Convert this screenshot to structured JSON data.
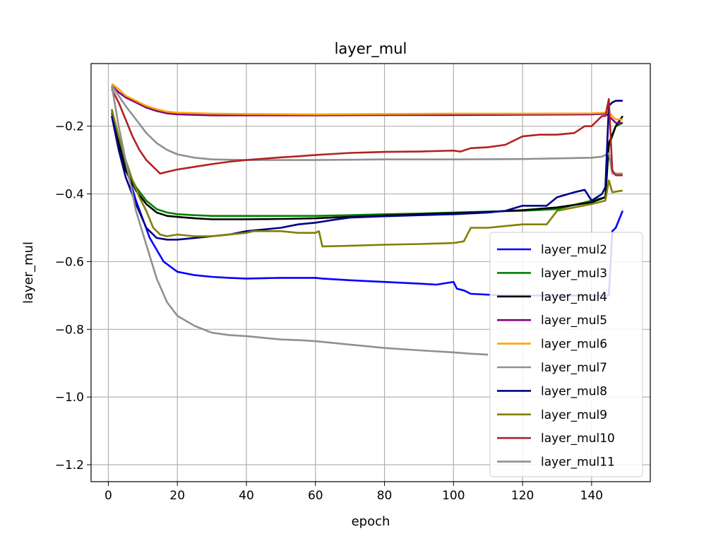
{
  "chart_data": {
    "type": "line",
    "title": "layer_mul",
    "xlabel": "epoch",
    "ylabel": "layer_mul",
    "xlim": [
      -5,
      157
    ],
    "ylim": [
      -1.25,
      -0.015
    ],
    "xticks": [
      0,
      20,
      40,
      60,
      80,
      100,
      120,
      140
    ],
    "yticks": [
      -1.2,
      -1.0,
      -0.8,
      -0.6,
      -0.4,
      -0.2
    ],
    "grid": true,
    "legend_position": "lower-right",
    "series": [
      {
        "name": "layer_mul2",
        "color": "#0000ff",
        "x": [
          1,
          3,
          5,
          8,
          12,
          16,
          20,
          25,
          30,
          35,
          40,
          45,
          50,
          60,
          62,
          70,
          80,
          90,
          95,
          100,
          101,
          103,
          105,
          115,
          118,
          120,
          125,
          130,
          135,
          140,
          145,
          146,
          147,
          149
        ],
        "y": [
          -0.17,
          -0.24,
          -0.32,
          -0.42,
          -0.53,
          -0.6,
          -0.63,
          -0.64,
          -0.645,
          -0.648,
          -0.65,
          -0.649,
          -0.648,
          -0.648,
          -0.65,
          -0.655,
          -0.66,
          -0.665,
          -0.668,
          -0.66,
          -0.68,
          -0.685,
          -0.695,
          -0.7,
          -0.7,
          -0.7,
          -0.7,
          -0.7,
          -0.7,
          -0.7,
          -0.7,
          -0.51,
          -0.5,
          -0.45
        ]
      },
      {
        "name": "layer_mul3",
        "color": "#008000",
        "x": [
          1,
          3,
          5,
          8,
          11,
          14,
          17,
          20,
          25,
          30,
          40,
          50,
          60,
          70,
          80,
          90,
          100,
          110,
          120,
          130,
          140,
          144,
          145,
          147,
          149
        ],
        "y": [
          -0.16,
          -0.25,
          -0.32,
          -0.38,
          -0.42,
          -0.445,
          -0.455,
          -0.46,
          -0.463,
          -0.465,
          -0.465,
          -0.465,
          -0.465,
          -0.463,
          -0.46,
          -0.458,
          -0.455,
          -0.452,
          -0.45,
          -0.445,
          -0.42,
          -0.41,
          -0.26,
          -0.2,
          -0.19
        ]
      },
      {
        "name": "layer_mul4",
        "color": "#000000",
        "x": [
          1,
          3,
          5,
          8,
          11,
          14,
          17,
          20,
          25,
          30,
          40,
          50,
          60,
          70,
          80,
          90,
          100,
          110,
          120,
          130,
          140,
          144,
          145,
          147,
          149
        ],
        "y": [
          -0.15,
          -0.25,
          -0.33,
          -0.39,
          -0.43,
          -0.455,
          -0.465,
          -0.468,
          -0.472,
          -0.475,
          -0.475,
          -0.474,
          -0.472,
          -0.468,
          -0.464,
          -0.46,
          -0.457,
          -0.453,
          -0.448,
          -0.44,
          -0.425,
          -0.41,
          -0.25,
          -0.2,
          -0.17
        ]
      },
      {
        "name": "layer_mul5",
        "color": "#800080",
        "x": [
          1,
          3,
          5,
          8,
          11,
          14,
          17,
          20,
          30,
          40,
          60,
          80,
          100,
          120,
          140,
          144,
          145,
          147,
          149
        ],
        "y": [
          -0.08,
          -0.1,
          -0.115,
          -0.13,
          -0.145,
          -0.155,
          -0.162,
          -0.165,
          -0.168,
          -0.168,
          -0.168,
          -0.167,
          -0.167,
          -0.166,
          -0.165,
          -0.163,
          -0.17,
          -0.19,
          -0.19
        ]
      },
      {
        "name": "layer_mul6",
        "color": "#ffa500",
        "x": [
          1,
          3,
          5,
          8,
          11,
          14,
          17,
          20,
          30,
          40,
          60,
          80,
          100,
          120,
          140,
          144,
          145,
          147,
          149
        ],
        "y": [
          -0.075,
          -0.09,
          -0.11,
          -0.125,
          -0.14,
          -0.15,
          -0.157,
          -0.16,
          -0.163,
          -0.164,
          -0.165,
          -0.164,
          -0.163,
          -0.163,
          -0.162,
          -0.16,
          -0.16,
          -0.18,
          -0.18
        ]
      },
      {
        "name": "layer_mul7",
        "color": "#909090",
        "x": [
          1,
          3,
          5,
          8,
          11,
          14,
          17,
          20,
          25,
          30,
          40,
          60,
          80,
          100,
          120,
          140,
          143,
          145,
          146,
          149
        ],
        "y": [
          -0.08,
          -0.11,
          -0.14,
          -0.18,
          -0.22,
          -0.25,
          -0.27,
          -0.283,
          -0.293,
          -0.298,
          -0.3,
          -0.3,
          -0.298,
          -0.298,
          -0.297,
          -0.293,
          -0.29,
          -0.28,
          -0.34,
          -0.34
        ]
      },
      {
        "name": "layer_mul8",
        "color": "#00008b",
        "x": [
          1,
          3,
          5,
          8,
          11,
          14,
          17,
          20,
          25,
          30,
          35,
          40,
          45,
          50,
          55,
          60,
          65,
          70,
          80,
          90,
          100,
          110,
          115,
          120,
          125,
          127,
          130,
          135,
          138,
          140,
          143,
          144,
          145,
          146,
          147,
          149
        ],
        "y": [
          -0.17,
          -0.27,
          -0.35,
          -0.43,
          -0.5,
          -0.53,
          -0.535,
          -0.535,
          -0.53,
          -0.525,
          -0.52,
          -0.51,
          -0.505,
          -0.5,
          -0.49,
          -0.485,
          -0.477,
          -0.47,
          -0.466,
          -0.463,
          -0.46,
          -0.455,
          -0.45,
          -0.435,
          -0.435,
          -0.435,
          -0.41,
          -0.395,
          -0.388,
          -0.42,
          -0.4,
          -0.38,
          -0.14,
          -0.13,
          -0.125,
          -0.125
        ]
      },
      {
        "name": "layer_mul9",
        "color": "#808000",
        "x": [
          1,
          3,
          5,
          7,
          9,
          11,
          13,
          15,
          17,
          20,
          25,
          30,
          35,
          40,
          42,
          45,
          50,
          55,
          60,
          61,
          62,
          70,
          80,
          90,
          100,
          103,
          105,
          110,
          115,
          120,
          125,
          127,
          130,
          140,
          144,
          145,
          146,
          149
        ],
        "y": [
          -0.15,
          -0.23,
          -0.3,
          -0.36,
          -0.41,
          -0.45,
          -0.5,
          -0.52,
          -0.525,
          -0.52,
          -0.525,
          -0.525,
          -0.52,
          -0.515,
          -0.51,
          -0.51,
          -0.51,
          -0.515,
          -0.515,
          -0.51,
          -0.555,
          -0.553,
          -0.55,
          -0.548,
          -0.545,
          -0.54,
          -0.5,
          -0.5,
          -0.495,
          -0.49,
          -0.49,
          -0.49,
          -0.45,
          -0.43,
          -0.42,
          -0.36,
          -0.395,
          -0.39
        ]
      },
      {
        "name": "layer_mul10",
        "color": "#b22222",
        "x": [
          1,
          3,
          5,
          7,
          9,
          11,
          13,
          15,
          17,
          20,
          25,
          30,
          35,
          40,
          45,
          50,
          55,
          60,
          65,
          70,
          80,
          90,
          100,
          102,
          105,
          110,
          115,
          120,
          125,
          130,
          135,
          138,
          140,
          142,
          143,
          144,
          145,
          146,
          147,
          149
        ],
        "y": [
          -0.09,
          -0.13,
          -0.18,
          -0.23,
          -0.27,
          -0.3,
          -0.32,
          -0.34,
          -0.335,
          -0.328,
          -0.32,
          -0.312,
          -0.305,
          -0.3,
          -0.296,
          -0.292,
          -0.289,
          -0.285,
          -0.282,
          -0.279,
          -0.276,
          -0.275,
          -0.272,
          -0.275,
          -0.265,
          -0.262,
          -0.255,
          -0.23,
          -0.225,
          -0.225,
          -0.22,
          -0.2,
          -0.2,
          -0.18,
          -0.17,
          -0.17,
          -0.12,
          -0.33,
          -0.345,
          -0.345
        ]
      },
      {
        "name": "layer_mul11",
        "color": "#909090",
        "x": [
          1,
          3,
          5,
          8,
          11,
          14,
          17,
          20,
          25,
          30,
          35,
          40,
          45,
          50,
          55,
          60,
          70,
          80,
          90,
          100,
          105,
          110
        ],
        "y": [
          -0.08,
          -0.2,
          -0.3,
          -0.45,
          -0.55,
          -0.65,
          -0.72,
          -0.76,
          -0.79,
          -0.81,
          -0.817,
          -0.82,
          -0.825,
          -0.83,
          -0.832,
          -0.835,
          -0.845,
          -0.855,
          -0.862,
          -0.868,
          -0.872,
          -0.875
        ]
      }
    ]
  }
}
